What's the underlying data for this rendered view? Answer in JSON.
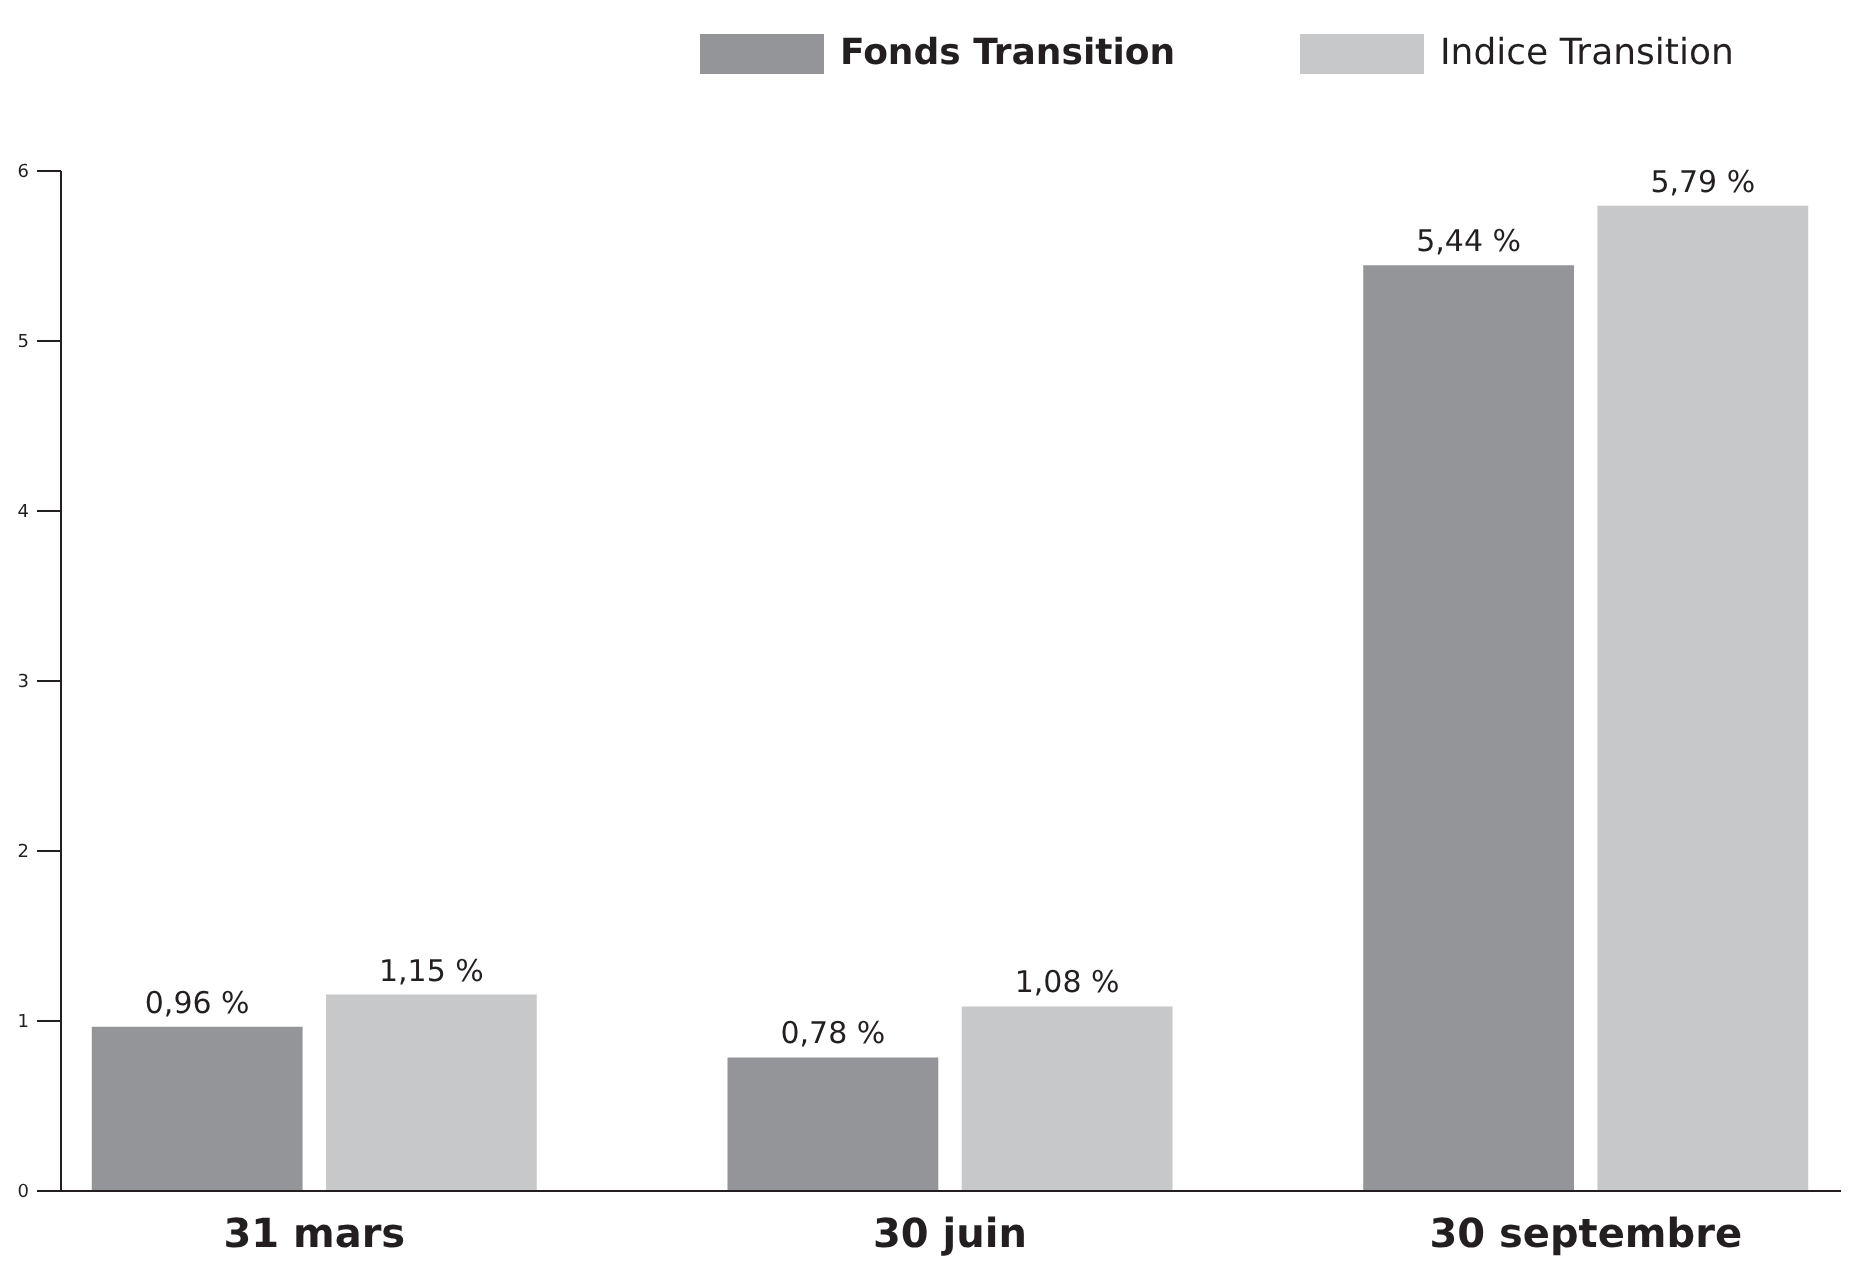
{
  "chart_data": {
    "type": "bar",
    "categories": [
      "31 mars",
      "30 juin",
      "30 septembre"
    ],
    "series": [
      {
        "name": "Fonds Transition",
        "color": "#939598",
        "values": [
          0.96,
          0.78,
          5.44
        ],
        "value_labels": [
          "0,96 %",
          "0,78 %",
          "5,44 %"
        ]
      },
      {
        "name": "Indice Transition",
        "color": "#c7c8ca",
        "values": [
          1.15,
          1.08,
          5.79
        ],
        "value_labels": [
          "1,15 %",
          "1,08 %",
          "5,79 %"
        ]
      }
    ],
    "ylim": [
      0,
      6
    ],
    "yticks": [
      0,
      1,
      2,
      3,
      4,
      5,
      6
    ],
    "grid": false,
    "legend": "top right"
  }
}
